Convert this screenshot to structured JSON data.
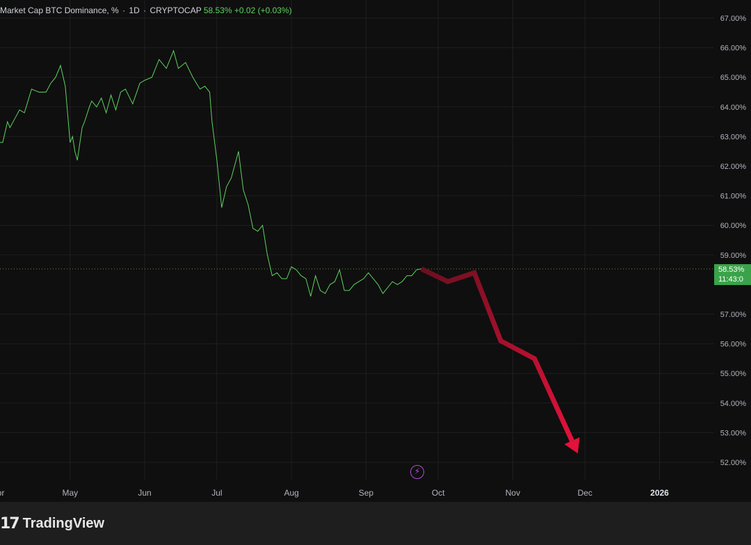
{
  "header": {
    "title": "Market Cap BTC Dominance, %",
    "interval": "1D",
    "source": "CRYPTOCAP",
    "last_value": "58.53%",
    "change": "+0.02 (+0.03%)",
    "separator": "·"
  },
  "price_tag": {
    "value": "58.53%",
    "countdown": "11:43:0"
  },
  "brand": {
    "logo_mark": "17",
    "name": "TradingView"
  },
  "colors": {
    "background": "#0f0f0f",
    "grid": "#1f1f1f",
    "line": "#5fd35f",
    "arrow_start": "#6b0f1f",
    "arrow_end": "#e3123a",
    "price_tag": "#3aa34a",
    "lightning": "#b04cd8"
  },
  "lightning_icon": "lightning-icon",
  "chart_data": {
    "type": "line",
    "ylim": [
      51.6,
      67.3
    ],
    "y_ticks": [
      "67.00%",
      "66.00%",
      "65.00%",
      "64.00%",
      "63.00%",
      "62.00%",
      "61.00%",
      "60.00%",
      "59.00%",
      "57.00%",
      "56.00%",
      "55.00%",
      "54.00%",
      "53.00%",
      "52.00%"
    ],
    "x_ticks": [
      "Apr",
      "May",
      "Jun",
      "Jul",
      "Aug",
      "Sep",
      "Oct",
      "Nov",
      "Dec",
      "2026"
    ],
    "grid": true,
    "series": [
      {
        "x": [
          "2025-04-01",
          "2025-04-03",
          "2025-04-05",
          "2025-04-06",
          "2025-04-08",
          "2025-04-10",
          "2025-04-12",
          "2025-04-15",
          "2025-04-18",
          "2025-04-21",
          "2025-04-23",
          "2025-04-25",
          "2025-04-27",
          "2025-04-29",
          "2025-05-01",
          "2025-05-02",
          "2025-05-03",
          "2025-05-04",
          "2025-05-06",
          "2025-05-07",
          "2025-05-09",
          "2025-05-10",
          "2025-05-12",
          "2025-05-14",
          "2025-05-16",
          "2025-05-18",
          "2025-05-20",
          "2025-05-22",
          "2025-05-24",
          "2025-05-27",
          "2025-05-30",
          "2025-06-01",
          "2025-06-04",
          "2025-06-07",
          "2025-06-10",
          "2025-06-13",
          "2025-06-15",
          "2025-06-18",
          "2025-06-21",
          "2025-06-24",
          "2025-06-26",
          "2025-06-28",
          "2025-06-29",
          "2025-07-01",
          "2025-07-03",
          "2025-07-05",
          "2025-07-07",
          "2025-07-10",
          "2025-07-12",
          "2025-07-14",
          "2025-07-16",
          "2025-07-18",
          "2025-07-20",
          "2025-07-22",
          "2025-07-24",
          "2025-07-26",
          "2025-07-28",
          "2025-07-30",
          "2025-08-01",
          "2025-08-03",
          "2025-08-05",
          "2025-08-07",
          "2025-08-09",
          "2025-08-11",
          "2025-08-13",
          "2025-08-15",
          "2025-08-17",
          "2025-08-19",
          "2025-08-21",
          "2025-08-23",
          "2025-08-25",
          "2025-08-27",
          "2025-08-29",
          "2025-08-31",
          "2025-09-02",
          "2025-09-04",
          "2025-09-06",
          "2025-09-08",
          "2025-09-10",
          "2025-09-12",
          "2025-09-14",
          "2025-09-16",
          "2025-09-18",
          "2025-09-20",
          "2025-09-22",
          "2025-09-24"
        ],
        "values": [
          62.8,
          62.8,
          63.5,
          63.3,
          63.6,
          63.9,
          63.8,
          64.6,
          64.5,
          64.5,
          64.8,
          65.0,
          65.4,
          64.7,
          62.8,
          63.0,
          62.5,
          62.2,
          63.3,
          63.5,
          64.0,
          64.2,
          64.0,
          64.3,
          63.8,
          64.4,
          63.9,
          64.5,
          64.6,
          64.1,
          64.8,
          64.9,
          65.0,
          65.6,
          65.3,
          65.9,
          65.3,
          65.5,
          65.0,
          64.6,
          64.7,
          64.5,
          63.5,
          62.2,
          60.6,
          61.3,
          61.6,
          62.5,
          61.2,
          60.7,
          59.9,
          59.8,
          60.0,
          59.0,
          58.3,
          58.4,
          58.2,
          58.2,
          58.6,
          58.5,
          58.3,
          58.2,
          57.6,
          58.3,
          57.8,
          57.7,
          58.0,
          58.1,
          58.5,
          57.8,
          57.8,
          58.0,
          58.1,
          58.2,
          58.4,
          58.2,
          58.0,
          57.7,
          57.9,
          58.1,
          58.0,
          58.1,
          58.3,
          58.3,
          58.5,
          58.53
        ]
      }
    ],
    "projection": {
      "x": [
        "2025-09-24",
        "2025-10-05",
        "2025-10-16",
        "2025-10-27",
        "2025-11-10",
        "2025-11-28"
      ],
      "values": [
        58.53,
        58.1,
        58.4,
        56.1,
        55.5,
        52.3
      ]
    }
  }
}
